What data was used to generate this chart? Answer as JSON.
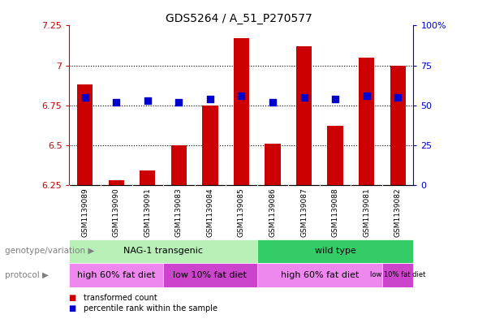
{
  "title": "GDS5264 / A_51_P270577",
  "samples": [
    "GSM1139089",
    "GSM1139090",
    "GSM1139091",
    "GSM1139083",
    "GSM1139084",
    "GSM1139085",
    "GSM1139086",
    "GSM1139087",
    "GSM1139088",
    "GSM1139081",
    "GSM1139082"
  ],
  "transformed_count": [
    6.88,
    6.28,
    6.34,
    6.5,
    6.75,
    7.17,
    6.51,
    7.12,
    6.62,
    7.05,
    7.0
  ],
  "percentile_rank": [
    55,
    52,
    53,
    52,
    54,
    56,
    52,
    55,
    54,
    56,
    55
  ],
  "ylim_left": [
    6.25,
    7.25
  ],
  "ylim_right": [
    0,
    100
  ],
  "yticks_left": [
    6.25,
    6.5,
    6.75,
    7.0,
    7.25
  ],
  "ytick_labels_left": [
    "6.25",
    "6.5",
    "6.75",
    "7",
    "7.25"
  ],
  "yticks_right": [
    0,
    25,
    50,
    75,
    100
  ],
  "ytick_labels_right": [
    "0",
    "25",
    "50",
    "75",
    "100%"
  ],
  "dotted_grid": [
    6.5,
    6.75,
    7.0
  ],
  "bar_color": "#cc0000",
  "dot_color": "#0000cc",
  "left_axis_color": "#cc0000",
  "right_axis_color": "#0000cc",
  "xtick_bg_color": "#cccccc",
  "nag_color": "#b8f0b8",
  "wild_color": "#33cc66",
  "proto_high_color": "#ee88ee",
  "proto_low_color": "#cc44cc",
  "legend": [
    {
      "label": "transformed count",
      "color": "#cc0000"
    },
    {
      "label": "percentile rank within the sample",
      "color": "#0000cc"
    }
  ],
  "genotype_label": "genotype/variation",
  "protocol_label": "protocol",
  "nag_label": "NAG-1 transgenic",
  "wild_label": "wild type",
  "nag_sample_range": [
    0,
    5
  ],
  "wild_sample_range": [
    6,
    10
  ],
  "proto_ranges": [
    [
      0,
      2
    ],
    [
      3,
      5
    ],
    [
      6,
      9
    ],
    [
      10,
      10
    ]
  ],
  "proto_labels": [
    "high 60% fat diet",
    "low 10% fat diet",
    "high 60% fat diet",
    "low 10% fat diet"
  ],
  "proto_font_sizes": [
    8,
    8,
    8,
    6
  ]
}
